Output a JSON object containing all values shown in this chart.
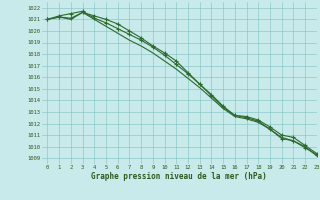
{
  "x": [
    0,
    1,
    2,
    3,
    4,
    5,
    6,
    7,
    8,
    9,
    10,
    11,
    12,
    13,
    14,
    15,
    16,
    17,
    18,
    19,
    20,
    21,
    22,
    23
  ],
  "line1": [
    1021.0,
    1021.3,
    1021.5,
    1021.7,
    1021.1,
    1020.7,
    1020.2,
    1019.7,
    1019.2,
    1018.6,
    1017.9,
    1017.1,
    1016.3,
    1015.4,
    1014.4,
    1013.4,
    1012.7,
    1012.5,
    1012.2,
    1011.5,
    1010.7,
    1010.5,
    1009.9,
    1009.3
  ],
  "line2": [
    1021.0,
    1021.2,
    1021.1,
    1021.6,
    1021.3,
    1021.0,
    1020.6,
    1020.0,
    1019.4,
    1018.7,
    1018.1,
    1017.4,
    1016.4,
    1015.4,
    1014.5,
    1013.5,
    1012.7,
    1012.6,
    1012.3,
    1011.7,
    1011.0,
    1010.8,
    1010.1,
    1009.4
  ],
  "line3": [
    1021.0,
    1021.2,
    1021.0,
    1021.6,
    1021.0,
    1020.4,
    1019.8,
    1019.2,
    1018.7,
    1018.1,
    1017.4,
    1016.7,
    1015.9,
    1015.1,
    1014.2,
    1013.3,
    1012.6,
    1012.4,
    1012.1,
    1011.5,
    1010.8,
    1010.5,
    1010.0,
    1009.2
  ],
  "line_color": "#2d6a2d",
  "bg_color": "#c8eaea",
  "grid_color": "#7fbfbf",
  "text_color": "#2d5a1e",
  "ylabel_vals": [
    1009,
    1010,
    1011,
    1012,
    1013,
    1014,
    1015,
    1016,
    1017,
    1018,
    1019,
    1020,
    1021,
    1022
  ],
  "ylim": [
    1008.5,
    1022.5
  ],
  "xlim": [
    -0.5,
    23
  ],
  "xlabel": "Graphe pression niveau de la mer (hPa)",
  "marker": "+"
}
